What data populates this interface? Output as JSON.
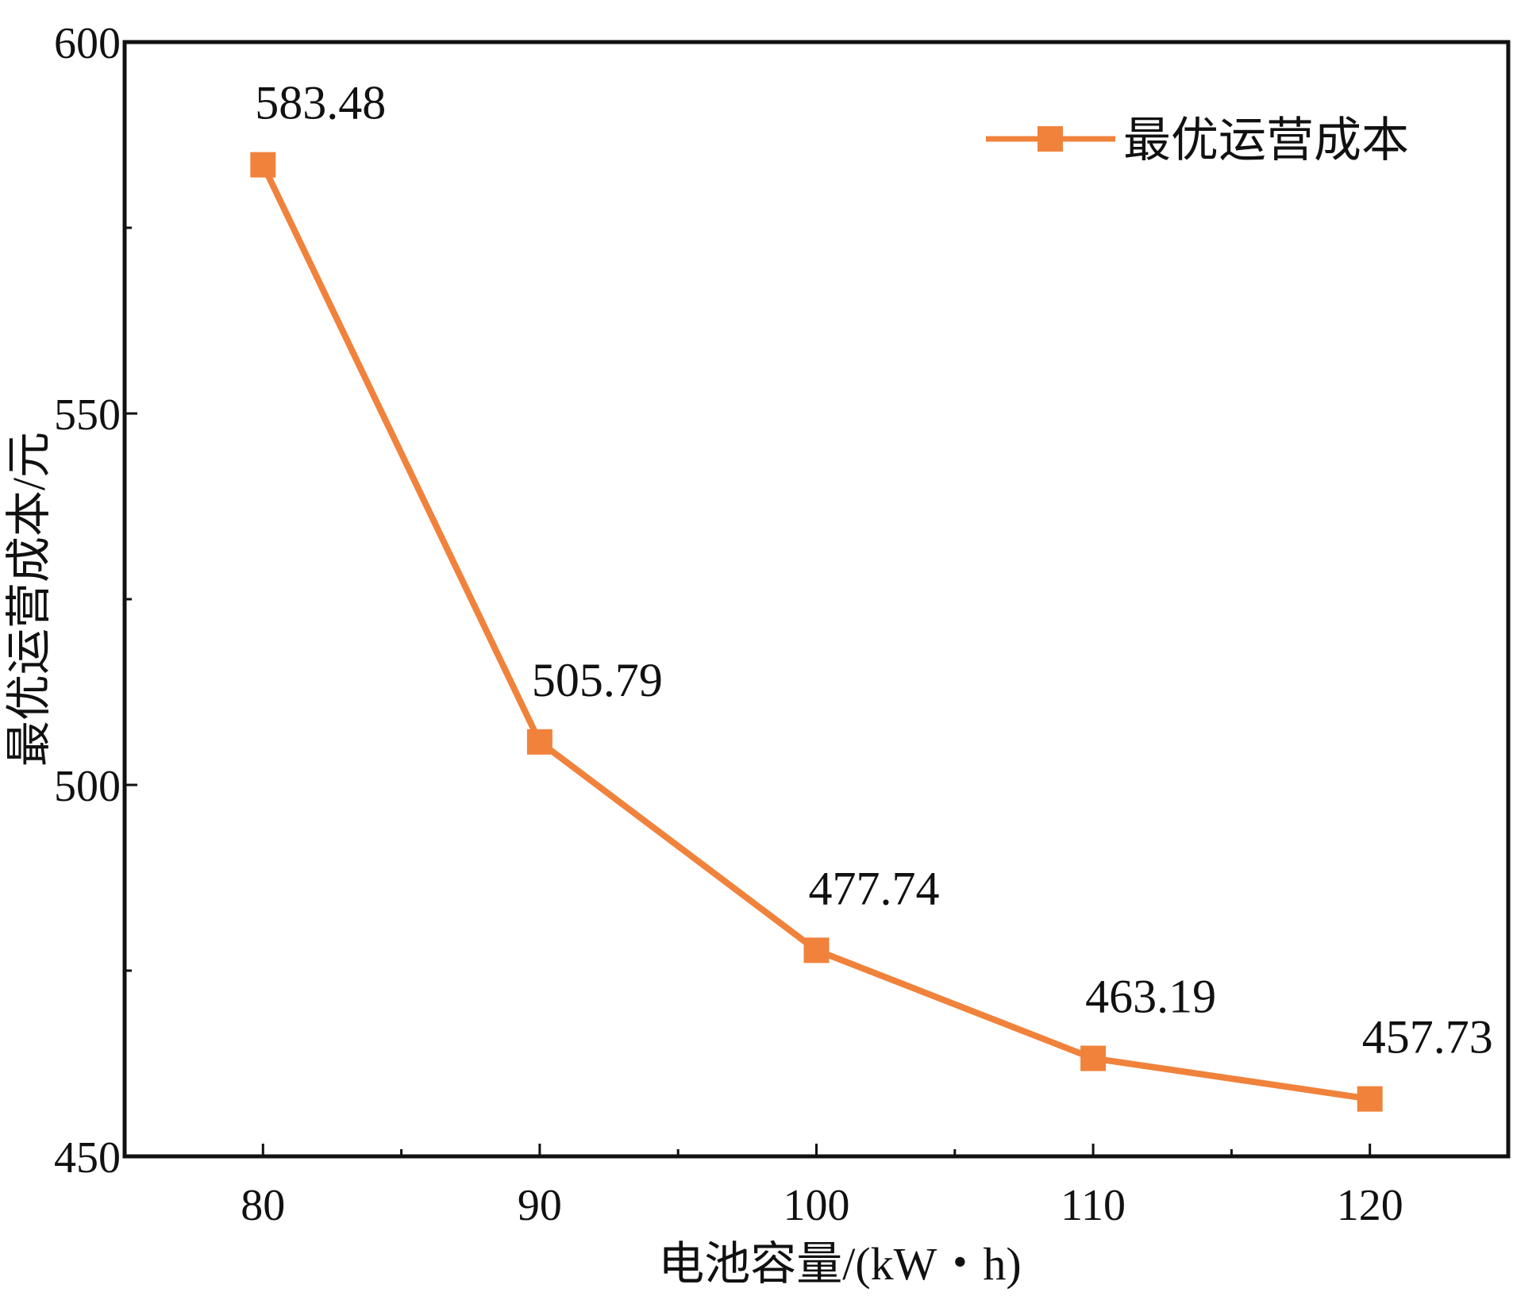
{
  "chart_data": {
    "type": "line",
    "title": "",
    "xlabel": "电池容量/(kW・h)",
    "ylabel": "最优运营成本/元",
    "xlim": [
      75,
      125
    ],
    "ylim": [
      450,
      600
    ],
    "xticks": [
      80,
      90,
      100,
      110,
      120
    ],
    "xminor": [
      85,
      95,
      105,
      115
    ],
    "yticks": [
      450,
      500,
      550,
      600
    ],
    "yminor": [
      475,
      525,
      575
    ],
    "grid": false,
    "legend_position": "top-right",
    "series": [
      {
        "name": "最优运营成本",
        "color": "#F0823C",
        "marker": "square",
        "x": [
          80,
          90,
          100,
          110,
          120
        ],
        "values": [
          583.48,
          505.79,
          477.74,
          463.19,
          457.73
        ],
        "labels": [
          "583.48",
          "505.79",
          "477.74",
          "463.19",
          "457.73"
        ]
      }
    ]
  }
}
